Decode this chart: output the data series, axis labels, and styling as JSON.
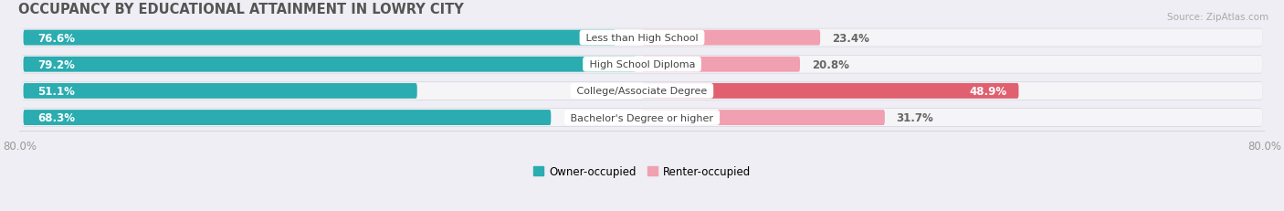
{
  "title": "OCCUPANCY BY EDUCATIONAL ATTAINMENT IN LOWRY CITY",
  "source": "Source: ZipAtlas.com",
  "categories": [
    "Less than High School",
    "High School Diploma",
    "College/Associate Degree",
    "Bachelor's Degree or higher"
  ],
  "owner_values": [
    76.6,
    79.2,
    51.1,
    68.3
  ],
  "renter_values": [
    23.4,
    20.8,
    48.9,
    31.7
  ],
  "owner_color_dark": "#2aacb0",
  "owner_color_light": "#60c8cc",
  "renter_color_dark": "#e06070",
  "renter_color_light": "#f0a0b0",
  "owner_label": "Owner-occupied",
  "renter_label": "Renter-occupied",
  "x_left_label": "80.0%",
  "x_right_label": "80.0%",
  "xlim_left": -80,
  "xlim_right": 80,
  "bar_height": 0.62,
  "background_color": "#eeeef4",
  "bar_bg_color": "#e8e8ee",
  "bar_inner_color": "#f5f5f8",
  "title_fontsize": 10.5,
  "label_fontsize": 8.5,
  "tick_fontsize": 8.5,
  "cat_fontsize": 8.0
}
